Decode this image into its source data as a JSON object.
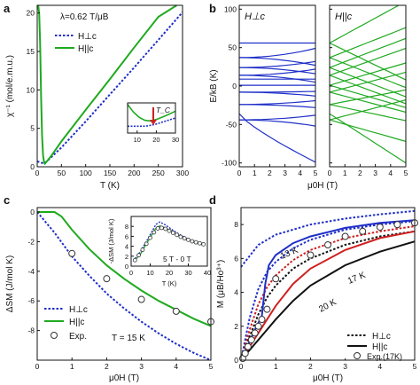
{
  "figure": {
    "panels": {
      "a": "a",
      "b": "b",
      "c": "c",
      "d": "d"
    }
  },
  "chart_data": [
    {
      "panel": "a",
      "type": "line",
      "xlabel": "T (K)",
      "ylabel": "χ⁻¹ (mol/e.m.u.)",
      "xlim": [
        0,
        300
      ],
      "ylim": [
        0,
        21
      ],
      "xticks": [
        "0",
        "50",
        "100",
        "150",
        "200",
        "250",
        "300"
      ],
      "yticks": [
        "0",
        "5",
        "10",
        "15",
        "20"
      ],
      "annotation": "λ=0.62 T/μB",
      "legend_position": "top-left",
      "series": [
        {
          "name": "H⊥c",
          "style": "dotted",
          "color": "#1f2fc8",
          "x": [
            0,
            5,
            10,
            13,
            18,
            30,
            50,
            100,
            150,
            200,
            250,
            300
          ],
          "y": [
            0.7,
            0.6,
            0.5,
            0.5,
            0.6,
            1.3,
            2.5,
            5.9,
            9.4,
            12.9,
            16.5,
            20.1
          ]
        },
        {
          "name": "H||c",
          "style": "solid",
          "color": "#1faa1f",
          "x": [
            2,
            4,
            6,
            8,
            10,
            12,
            14,
            16,
            20,
            30,
            50,
            100,
            150,
            200,
            250,
            288
          ],
          "y": [
            21,
            20,
            16,
            9,
            4,
            1.5,
            0.6,
            0.4,
            0.7,
            1.5,
            3.3,
            7.4,
            11.4,
            15.5,
            19.5,
            21
          ]
        }
      ],
      "inset": {
        "xlim": [
          5,
          30
        ],
        "ylim": [
          0,
          2
        ],
        "xticks": [
          "10",
          "20",
          "30"
        ],
        "annotation": "T_C",
        "series": [
          {
            "name": "H⊥c",
            "x": [
              5,
              10,
              13,
              16,
              20,
              25,
              30
            ],
            "y": [
              0.45,
              0.45,
              0.45,
              0.48,
              0.6,
              0.8,
              1.0
            ]
          },
          {
            "name": "H||c",
            "x": [
              5,
              8,
              11,
              14,
              17,
              20,
              25,
              30
            ],
            "y": [
              1.9,
              1.4,
              1.05,
              0.85,
              0.8,
              0.9,
              1.15,
              1.45
            ]
          }
        ]
      }
    },
    {
      "panel": "b",
      "type": "line",
      "xlabel": "μ0H (T)",
      "ylabel": "E/kB (K)",
      "xlim": [
        0,
        5
      ],
      "ylim": [
        -105,
        105
      ],
      "xticks": [
        "0",
        "1",
        "2",
        "3",
        "4",
        "5"
      ],
      "yticks": [
        "-100",
        "-50",
        "0",
        "50",
        "100"
      ],
      "subpanels": [
        {
          "label": "H⊥c",
          "color": "#1f2fc8",
          "levels": [
            {
              "y0": 56,
              "y1": 56
            },
            {
              "y0": 37,
              "y1": 49
            },
            {
              "y0": 37,
              "y1": 27
            },
            {
              "y0": 24,
              "y1": 32
            },
            {
              "y0": 24,
              "y1": 16
            },
            {
              "y0": 14,
              "y1": 5
            },
            {
              "y0": 14,
              "y1": 22
            },
            {
              "y0": -8,
              "y1": -7
            },
            {
              "y0": -8,
              "y1": -13
            },
            {
              "y0": 1,
              "y1": 1
            },
            {
              "y0": 9,
              "y1": 9
            },
            {
              "y0": -24,
              "y1": -19
            },
            {
              "y0": -24,
              "y1": -28
            },
            {
              "y0": -44,
              "y1": -38
            },
            {
              "y0": -44,
              "y1": -52
            },
            {
              "y0": -36,
              "y1": -99,
              "curve": true
            }
          ]
        },
        {
          "label": "H||c",
          "color": "#1faa1f",
          "levels": [
            {
              "y0": 56,
              "y1": 110
            },
            {
              "y0": 56,
              "y1": 8
            },
            {
              "y0": 37,
              "y1": 76
            },
            {
              "y0": 37,
              "y1": -2
            },
            {
              "y0": 24,
              "y1": 62
            },
            {
              "y0": 24,
              "y1": -14
            },
            {
              "y0": 14,
              "y1": 49
            },
            {
              "y0": 14,
              "y1": -23
            },
            {
              "y0": 1,
              "y1": 30
            },
            {
              "y0": 1,
              "y1": -28
            },
            {
              "y0": -8,
              "y1": 18
            },
            {
              "y0": -8,
              "y1": -34
            },
            {
              "y0": -24,
              "y1": -5
            },
            {
              "y0": -24,
              "y1": -45
            },
            {
              "y0": -44,
              "y1": -18
            },
            {
              "y0": -44,
              "y1": -72
            },
            {
              "y0": -36,
              "y1": -100
            }
          ]
        }
      ]
    },
    {
      "panel": "c",
      "type": "line",
      "xlabel": "μ0H (T)",
      "ylabel": "ΔSM (J/mol K)",
      "xlim": [
        0,
        5
      ],
      "ylim": [
        -10,
        0.3
      ],
      "xticks": [
        "0",
        "1",
        "2",
        "3",
        "4",
        "5"
      ],
      "yticks": [
        "0",
        "-2",
        "-4",
        "-6",
        "-8"
      ],
      "annotation": "T = 15 K",
      "legend_position": "bottom-left",
      "series": [
        {
          "name": "H⊥c",
          "style": "dotted",
          "color": "#1f2fc8",
          "x": [
            0,
            0.5,
            1,
            1.5,
            2,
            2.5,
            3,
            3.5,
            4,
            4.5,
            5
          ],
          "y": [
            0,
            -1.4,
            -3.0,
            -4.3,
            -5.5,
            -6.5,
            -7.4,
            -8.2,
            -8.9,
            -9.5,
            -10.0
          ]
        },
        {
          "name": "H||c",
          "style": "solid",
          "color": "#1faa1f",
          "x": [
            0,
            0.5,
            0.7,
            1,
            1.5,
            2,
            2.5,
            3,
            3.5,
            4,
            4.5,
            5
          ],
          "y": [
            0,
            0,
            -0.3,
            -1.2,
            -2.5,
            -3.6,
            -4.5,
            -5.3,
            -6.0,
            -6.6,
            -7.2,
            -7.7
          ]
        },
        {
          "name": "Exp.",
          "style": "marker",
          "x": [
            1,
            2,
            3,
            4,
            5
          ],
          "y": [
            -2.8,
            -4.5,
            -5.9,
            -6.7,
            -7.4
          ]
        }
      ],
      "inset": {
        "xlabel": "T (K)",
        "ylabel": "-ΔSM (J/mol K)",
        "annotation": "5 T - 0 T",
        "xlim": [
          0,
          40
        ],
        "ylim": [
          0,
          10
        ],
        "xticks": [
          "0",
          "10",
          "20",
          "30",
          "40"
        ],
        "yticks": [
          "0",
          "2",
          "4",
          "6",
          "8"
        ],
        "series": [
          {
            "name": "H⊥c",
            "x": [
              2,
              5,
              8,
              11,
              13,
              15,
              18,
              22,
              27,
              32,
              38
            ],
            "y": [
              1.5,
              3,
              5,
              7,
              8.4,
              8.9,
              8.3,
              7.2,
              6.0,
              5.1,
              4.3
            ]
          },
          {
            "name": "H||c",
            "x": [
              2,
              5,
              8,
              11,
              13,
              15,
              18,
              22,
              27,
              32,
              38
            ],
            "y": [
              1.2,
              2.5,
              4.5,
              6.4,
              7.6,
              8.1,
              7.7,
              6.8,
              5.7,
              4.9,
              4.2
            ]
          },
          {
            "name": "Exp.",
            "x": [
              2,
              4,
              6,
              8,
              10,
              12,
              14,
              16,
              18,
              20,
              22,
              24,
              26,
              28,
              30,
              32,
              34,
              36,
              38
            ],
            "y": [
              1.2,
              2.2,
              3.3,
              4.5,
              5.7,
              6.8,
              7.6,
              7.7,
              7.5,
              7.1,
              6.7,
              6.3,
              5.9,
              5.6,
              5.3,
              5.0,
              4.8,
              4.6,
              4.4
            ]
          }
        ]
      }
    },
    {
      "panel": "d",
      "type": "line",
      "xlabel": "μ0H (T)",
      "ylabel": "M (μB/Ho³⁺)",
      "xlim": [
        0,
        5
      ],
      "ylim": [
        0,
        9
      ],
      "xticks": [
        "0",
        "1",
        "2",
        "3",
        "4",
        "5"
      ],
      "yticks": [
        "0",
        "2",
        "4",
        "6",
        "8"
      ],
      "curve_labels": [
        "13 K",
        "17 K",
        "20 K"
      ],
      "legend_position": "bottom-right",
      "series": [
        {
          "name": "H⊥c 0 K",
          "style": "dotted",
          "color": "#1f2fc8",
          "x": [
            0,
            0.5,
            1,
            2,
            3,
            4,
            5
          ],
          "y": [
            5.5,
            6.8,
            7.4,
            8.0,
            8.35,
            8.6,
            8.8
          ]
        },
        {
          "name": "H⊥c 13 K",
          "style": "dotted",
          "color": "#1f2fc8",
          "x": [
            0,
            0.25,
            0.5,
            0.75,
            1,
            1.5,
            2,
            3,
            4,
            5
          ],
          "y": [
            0,
            2.5,
            4.2,
            5.2,
            5.8,
            6.6,
            7.1,
            7.7,
            8.0,
            8.2
          ]
        },
        {
          "name": "H⊥c 17 K",
          "style": "dotted",
          "color": "#d02020",
          "x": [
            0,
            0.25,
            0.5,
            0.75,
            1,
            1.5,
            2,
            3,
            4,
            5
          ],
          "y": [
            0,
            1.8,
            3.3,
            4.3,
            5.0,
            5.9,
            6.5,
            7.2,
            7.6,
            7.9
          ]
        },
        {
          "name": "H⊥c 20 K",
          "style": "dotted",
          "color": "#111111",
          "x": [
            0,
            0.25,
            0.5,
            0.75,
            1,
            1.5,
            2,
            3,
            4,
            5
          ],
          "y": [
            0,
            1.4,
            2.7,
            3.7,
            4.4,
            5.4,
            6.0,
            6.8,
            7.3,
            7.6
          ]
        },
        {
          "name": "H||c 13 K",
          "style": "solid",
          "color": "#1f2fc8",
          "x": [
            0,
            0.2,
            0.4,
            0.6,
            0.7,
            0.8,
            1,
            1.5,
            2,
            3,
            4,
            5
          ],
          "y": [
            0,
            0.9,
            1.8,
            2.6,
            4.5,
            5.6,
            6.2,
            6.9,
            7.3,
            7.8,
            8.1,
            8.25
          ]
        },
        {
          "name": "H||c 17 K",
          "style": "solid",
          "color": "#d02020",
          "x": [
            0,
            0.25,
            0.5,
            0.75,
            1,
            1.5,
            2,
            3,
            4,
            5
          ],
          "y": [
            0,
            0.8,
            1.6,
            2.4,
            3.2,
            4.5,
            5.4,
            6.5,
            7.2,
            7.6
          ]
        },
        {
          "name": "H||c 20 K",
          "style": "solid",
          "color": "#111111",
          "x": [
            0,
            0.25,
            0.5,
            0.75,
            1,
            1.5,
            2,
            3,
            4,
            5
          ],
          "y": [
            0,
            0.6,
            1.2,
            1.8,
            2.4,
            3.5,
            4.4,
            5.6,
            6.4,
            7.0
          ]
        },
        {
          "name": "Exp.(17K)",
          "style": "marker",
          "x": [
            0.05,
            0.12,
            0.2,
            0.3,
            0.4,
            0.5,
            0.6,
            0.75,
            1.0,
            2.0,
            2.5,
            3.0,
            3.5,
            4.0,
            4.5,
            5.0
          ],
          "y": [
            0.1,
            0.4,
            0.8,
            1.2,
            1.6,
            2.0,
            2.4,
            3.0,
            4.8,
            6.2,
            6.8,
            7.3,
            7.6,
            7.85,
            8.0,
            8.1
          ]
        }
      ]
    }
  ],
  "legend_text": {
    "a_perp": "H⊥c",
    "a_par": "H||c",
    "c_perp": "H⊥c",
    "c_par": "H||c",
    "c_exp": "Exp.",
    "d_perp": "H⊥c",
    "d_par": "H||c",
    "d_exp": "Exp.(17K)"
  }
}
